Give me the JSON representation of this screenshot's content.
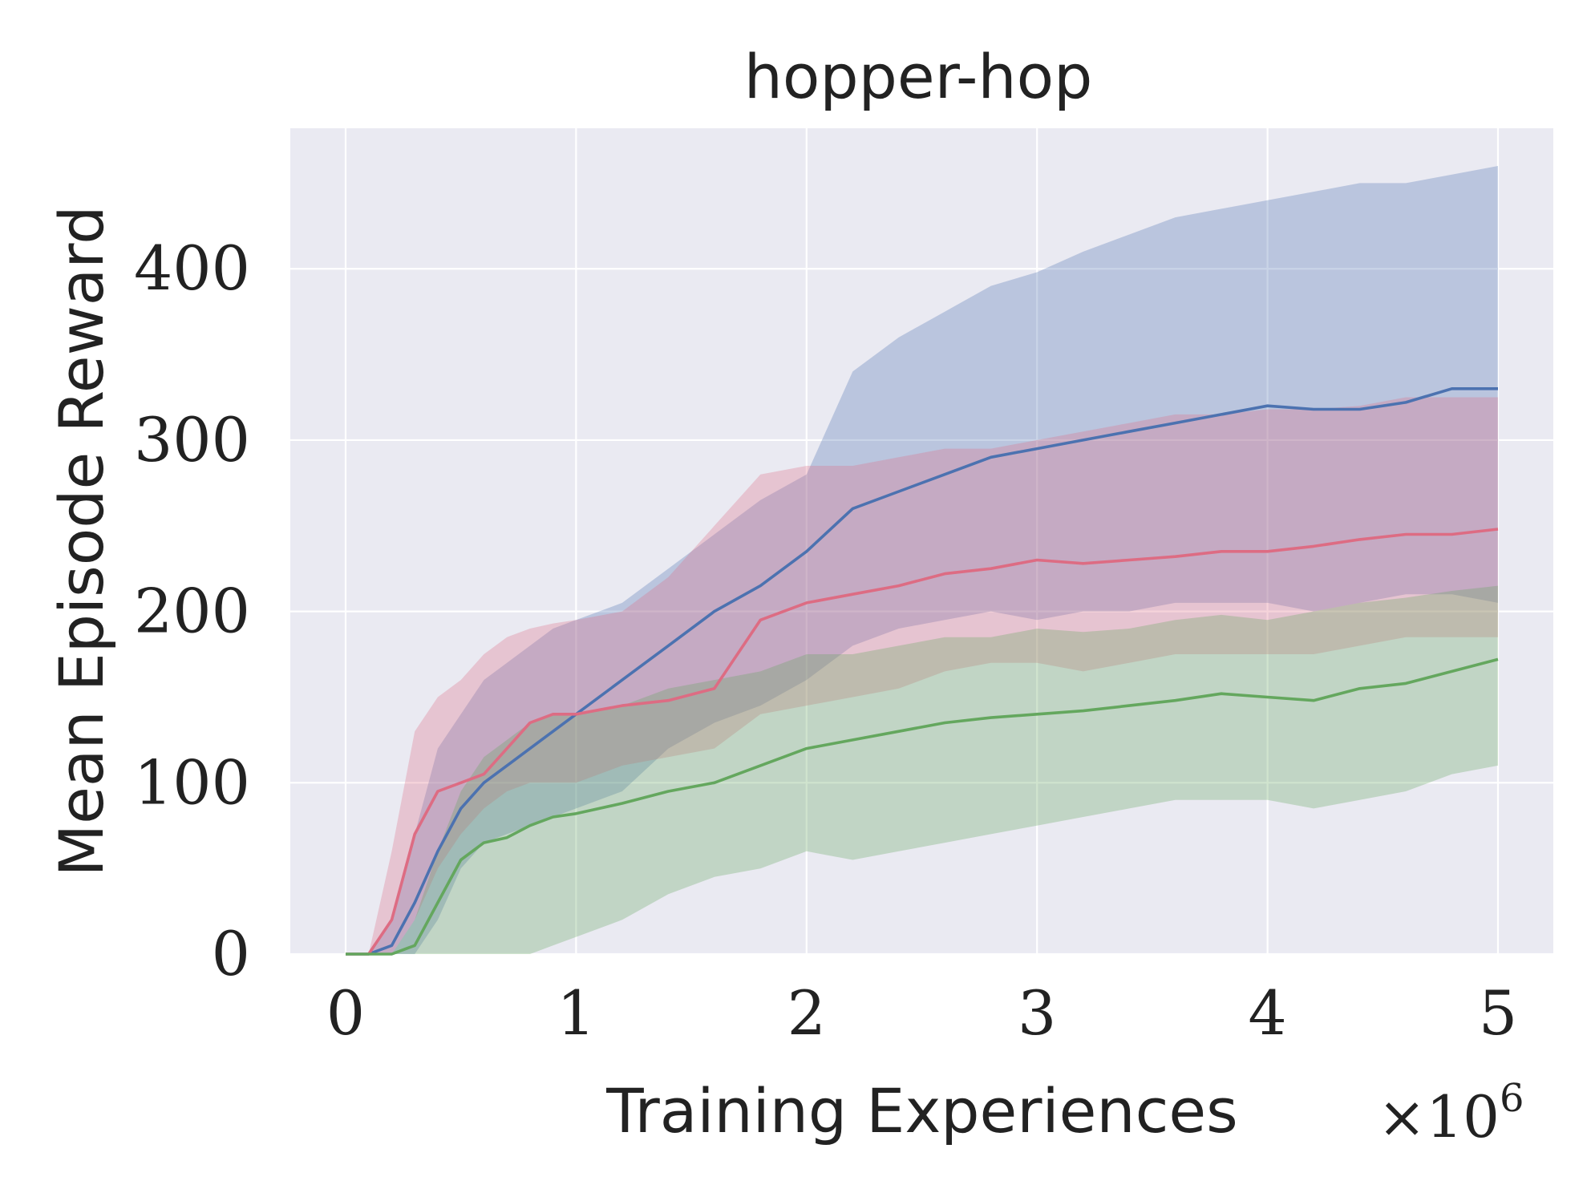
{
  "chart_data": {
    "type": "line",
    "title": "hopper-hop",
    "xlabel": "Training Experiences",
    "ylabel": "Mean Episode Reward",
    "x_multiplier_label": "×10",
    "x_multiplier_exp": "6",
    "xlim": [
      -0.24,
      5.24
    ],
    "ylim": [
      0,
      482
    ],
    "x_ticks": [
      0,
      1,
      2,
      3,
      4,
      5
    ],
    "x_tick_labels": [
      "0",
      "1",
      "2",
      "3",
      "4",
      "5"
    ],
    "y_ticks": [
      0,
      100,
      200,
      300,
      400
    ],
    "y_tick_labels": [
      "0",
      "100",
      "200",
      "300",
      "400"
    ],
    "grid": true,
    "legend": "none",
    "series": [
      {
        "color": "#4c72b0",
        "x": [
          0,
          0.1,
          0.2,
          0.3,
          0.4,
          0.5,
          0.6,
          0.7,
          0.8,
          0.9,
          1.0,
          1.2,
          1.4,
          1.6,
          1.8,
          2.0,
          2.2,
          2.4,
          2.6,
          2.8,
          3.0,
          3.2,
          3.4,
          3.6,
          3.8,
          4.0,
          4.2,
          4.4,
          4.6,
          4.8,
          5.0
        ],
        "mean": [
          0,
          0,
          5,
          30,
          60,
          85,
          100,
          110,
          120,
          130,
          140,
          160,
          180,
          200,
          215,
          235,
          260,
          270,
          280,
          290,
          295,
          300,
          305,
          310,
          315,
          320,
          318,
          318,
          322,
          330,
          330
        ],
        "upper": [
          0,
          0,
          20,
          70,
          120,
          140,
          160,
          170,
          180,
          190,
          195,
          205,
          225,
          245,
          265,
          280,
          340,
          360,
          375,
          390,
          398,
          410,
          420,
          430,
          435,
          440,
          445,
          450,
          450,
          455,
          460
        ],
        "lower": [
          0,
          0,
          0,
          0,
          20,
          50,
          65,
          70,
          75,
          80,
          85,
          95,
          120,
          135,
          145,
          160,
          180,
          190,
          195,
          200,
          195,
          200,
          200,
          205,
          205,
          205,
          200,
          205,
          210,
          210,
          205
        ]
      },
      {
        "color": "#dd6c83",
        "x": [
          0,
          0.1,
          0.2,
          0.3,
          0.4,
          0.5,
          0.6,
          0.7,
          0.8,
          0.9,
          1.0,
          1.2,
          1.4,
          1.6,
          1.8,
          2.0,
          2.2,
          2.4,
          2.6,
          2.8,
          3.0,
          3.2,
          3.4,
          3.6,
          3.8,
          4.0,
          4.2,
          4.4,
          4.6,
          4.8,
          5.0
        ],
        "mean": [
          0,
          0,
          20,
          70,
          95,
          100,
          105,
          120,
          135,
          140,
          140,
          145,
          148,
          155,
          195,
          205,
          210,
          215,
          222,
          225,
          230,
          228,
          230,
          232,
          235,
          235,
          238,
          242,
          245,
          245,
          248
        ],
        "upper": [
          0,
          0,
          60,
          130,
          150,
          160,
          175,
          185,
          190,
          193,
          195,
          200,
          220,
          250,
          280,
          285,
          285,
          290,
          295,
          295,
          300,
          305,
          310,
          315,
          315,
          318,
          318,
          320,
          325,
          325,
          325
        ],
        "lower": [
          0,
          0,
          0,
          20,
          50,
          70,
          85,
          95,
          100,
          100,
          100,
          110,
          115,
          120,
          140,
          145,
          150,
          155,
          165,
          170,
          170,
          165,
          170,
          175,
          175,
          175,
          175,
          180,
          185,
          185,
          185
        ]
      },
      {
        "color": "#64a75e",
        "x": [
          0,
          0.1,
          0.2,
          0.3,
          0.4,
          0.5,
          0.6,
          0.7,
          0.8,
          0.9,
          1.0,
          1.2,
          1.4,
          1.6,
          1.8,
          2.0,
          2.2,
          2.4,
          2.6,
          2.8,
          3.0,
          3.2,
          3.4,
          3.6,
          3.8,
          4.0,
          4.2,
          4.4,
          4.6,
          4.8,
          5.0
        ],
        "mean": [
          0,
          0,
          0,
          5,
          30,
          55,
          65,
          68,
          75,
          80,
          82,
          88,
          95,
          100,
          110,
          120,
          125,
          130,
          135,
          138,
          140,
          142,
          145,
          148,
          152,
          150,
          148,
          155,
          158,
          165,
          172
        ],
        "upper": [
          0,
          0,
          0,
          20,
          60,
          95,
          115,
          125,
          135,
          140,
          140,
          145,
          155,
          160,
          165,
          175,
          175,
          180,
          185,
          185,
          190,
          188,
          190,
          195,
          198,
          195,
          200,
          205,
          208,
          212,
          215
        ],
        "lower": [
          0,
          0,
          0,
          0,
          0,
          0,
          0,
          0,
          0,
          5,
          10,
          20,
          35,
          45,
          50,
          60,
          55,
          60,
          65,
          70,
          75,
          80,
          85,
          90,
          90,
          90,
          85,
          90,
          95,
          105,
          110
        ]
      }
    ]
  }
}
